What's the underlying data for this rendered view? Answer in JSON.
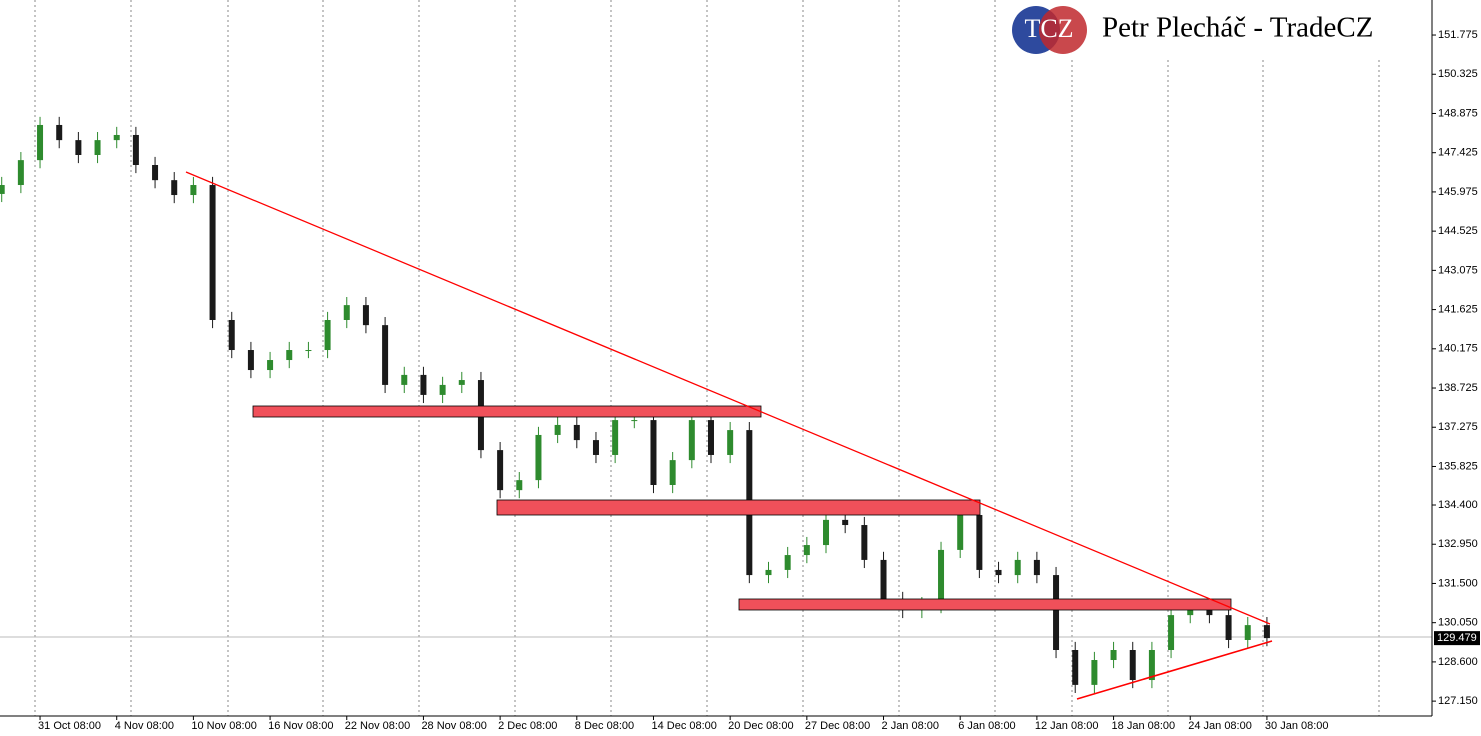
{
  "chart_data": {
    "type": "candlestick",
    "logo": "TCZ",
    "watermark": "Petr Plecháč - TradeCZ",
    "categories": [
      null,
      null,
      "31 Oct 08:00",
      null,
      null,
      null,
      "4 Nov 08:00",
      null,
      null,
      null,
      "10 Nov 08:00",
      null,
      null,
      null,
      "16 Nov 08:00",
      null,
      null,
      null,
      "22 Nov 08:00",
      null,
      null,
      null,
      "28 Nov 08:00",
      null,
      null,
      null,
      "2 Dec 08:00",
      null,
      null,
      null,
      "8 Dec 08:00",
      null,
      null,
      null,
      "14 Dec 08:00",
      null,
      null,
      null,
      "20 Dec 08:00",
      null,
      null,
      null,
      "27 Dec 08:00",
      null,
      null,
      null,
      "2 Jan 08:00",
      null,
      null,
      null,
      "6 Jan 08:00",
      null,
      null,
      null,
      "12 Jan 08:00",
      null,
      null,
      null,
      "18 Jan 08:00",
      null,
      null,
      null,
      "24 Jan 08:00",
      null,
      null,
      null,
      "30 Jan 08:00"
    ],
    "open": [
      145.9,
      146.23,
      147.15,
      148.45,
      147.89,
      147.34,
      147.89,
      148.08,
      146.97,
      146.41,
      145.86,
      146.23,
      141.24,
      140.13,
      139.39,
      139.76,
      140.13,
      140.13,
      141.24,
      141.79,
      141.05,
      138.84,
      139.21,
      138.47,
      138.84,
      139.02,
      136.43,
      134.95,
      135.32,
      136.99,
      137.36,
      136.8,
      136.25,
      137.54,
      137.54,
      135.14,
      136.06,
      137.54,
      136.25,
      137.17,
      131.81,
      132.0,
      132.55,
      132.92,
      133.85,
      133.66,
      132.37,
      130.89,
      130.52,
      130.7,
      132.74,
      134.03,
      132.0,
      131.81,
      132.37,
      131.81,
      129.04,
      127.75,
      128.67,
      129.04,
      127.93,
      129.04,
      130.33,
      130.52,
      130.33,
      129.41,
      129.96
    ],
    "high": [
      146.53,
      147.45,
      148.75,
      148.75,
      148.19,
      148.19,
      148.38,
      148.38,
      147.27,
      146.71,
      146.53,
      146.53,
      141.54,
      140.43,
      140.06,
      140.43,
      140.43,
      141.54,
      142.09,
      142.09,
      141.35,
      139.51,
      139.51,
      139.14,
      139.32,
      139.32,
      136.73,
      135.62,
      137.29,
      137.66,
      137.66,
      137.1,
      137.84,
      137.84,
      137.84,
      136.36,
      137.84,
      137.84,
      137.47,
      137.47,
      132.3,
      132.85,
      133.22,
      134.15,
      134.15,
      133.96,
      132.67,
      131.19,
      131.0,
      133.04,
      134.33,
      134.33,
      132.3,
      132.67,
      132.67,
      132.11,
      129.34,
      128.97,
      129.34,
      129.34,
      129.34,
      130.63,
      130.82,
      130.82,
      130.63,
      130.26,
      130.26
    ],
    "low": [
      145.6,
      145.93,
      146.85,
      147.59,
      147.04,
      147.04,
      147.59,
      146.67,
      146.11,
      145.56,
      145.56,
      140.94,
      139.83,
      139.09,
      139.09,
      139.46,
      139.83,
      139.83,
      140.94,
      140.75,
      138.54,
      138.54,
      138.17,
      138.17,
      138.54,
      136.13,
      134.65,
      134.65,
      135.02,
      136.69,
      136.5,
      135.95,
      135.95,
      137.24,
      134.84,
      134.84,
      135.76,
      135.95,
      135.95,
      131.51,
      131.51,
      131.7,
      132.25,
      132.62,
      133.36,
      132.07,
      130.59,
      130.22,
      130.22,
      130.4,
      132.44,
      131.7,
      131.51,
      131.51,
      131.51,
      128.74,
      127.45,
      127.45,
      128.37,
      127.63,
      127.63,
      128.74,
      130.03,
      130.03,
      129.11,
      129.11,
      129.18
    ],
    "close": [
      146.23,
      147.15,
      148.45,
      147.89,
      147.34,
      147.89,
      148.08,
      146.97,
      146.41,
      145.86,
      146.23,
      141.24,
      140.13,
      139.39,
      139.76,
      140.13,
      140.13,
      141.24,
      141.79,
      141.05,
      138.84,
      139.21,
      138.47,
      138.84,
      139.02,
      136.43,
      134.95,
      135.32,
      136.99,
      137.36,
      136.8,
      136.25,
      137.54,
      137.54,
      135.14,
      136.06,
      137.54,
      136.25,
      137.17,
      131.81,
      132.0,
      132.55,
      132.92,
      133.85,
      133.66,
      132.37,
      130.89,
      130.52,
      130.7,
      132.74,
      134.03,
      132.0,
      131.81,
      132.37,
      131.81,
      129.04,
      127.75,
      128.67,
      129.04,
      127.93,
      129.04,
      130.33,
      130.52,
      130.33,
      129.41,
      129.96,
      129.48
    ],
    "up_color": "#2e8b2e",
    "down_color": "#1a1a1a",
    "current": 129.479,
    "ylim": [
      126.6,
      153.07
    ],
    "yticks": [
      {
        "value": 127.15,
        "label": "127.150"
      },
      {
        "value": 128.6,
        "label": "128.600"
      },
      {
        "value": 130.05,
        "label": "130.050"
      },
      {
        "value": 131.5,
        "label": "131.500"
      },
      {
        "value": 132.95,
        "label": "132.950"
      },
      {
        "value": 134.4,
        "label": "134.400"
      },
      135.825,
      {
        "value": 137.275,
        "label": "137.275"
      },
      138.725,
      {
        "value": 140.175,
        "label": "140.175"
      },
      141.625,
      143.075,
      144.525,
      145.975,
      147.425,
      148.875,
      150.325,
      151.775
    ]
  }
}
